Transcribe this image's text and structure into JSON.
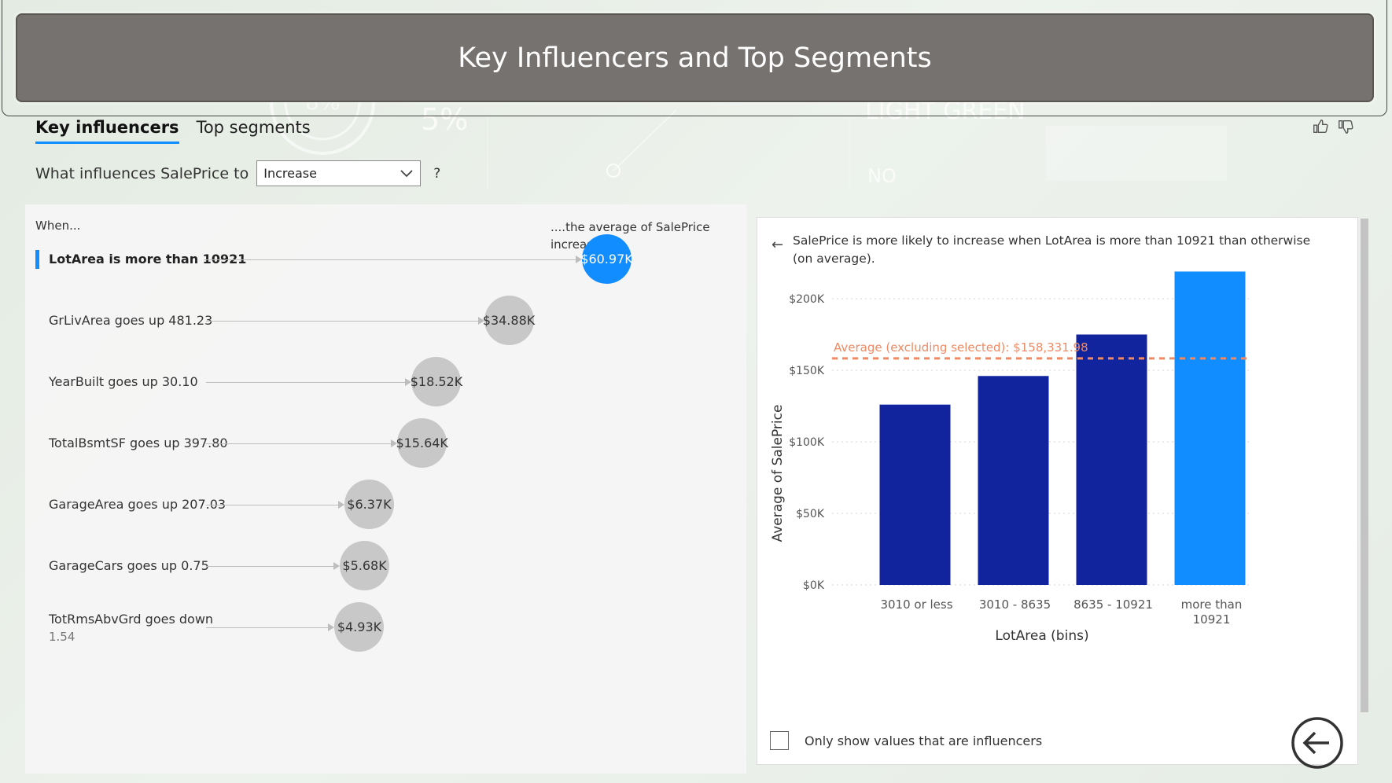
{
  "header": {
    "title": "Key Influencers and Top Segments"
  },
  "background": {
    "deco_text_1": "5%",
    "deco_text_2": "LIGHT GREEN",
    "deco_text_3": "NO",
    "deco_text_4": "5%",
    "deco_text_5": "8%"
  },
  "tabs": [
    {
      "label": "Key influencers",
      "active": true
    },
    {
      "label": "Top segments",
      "active": false
    }
  ],
  "question": {
    "prefix": "What influences SalePrice to",
    "selected": "Increase",
    "suffix": "?"
  },
  "influencers": {
    "col_when": "When...",
    "col_increase_line1": "....the average of SalePrice",
    "col_increase_line2": "increases by",
    "items": [
      {
        "label": "LotArea is more than 10921",
        "sub": "",
        "value": "$60.97K",
        "amount": 60.97,
        "selected": true
      },
      {
        "label": "GrLivArea goes up 481.23",
        "sub": "",
        "value": "$34.88K",
        "amount": 34.88,
        "selected": false
      },
      {
        "label": "YearBuilt goes up 30.10",
        "sub": "",
        "value": "$18.52K",
        "amount": 18.52,
        "selected": false
      },
      {
        "label": "TotalBsmtSF goes up 397.80",
        "sub": "",
        "value": "$15.64K",
        "amount": 15.64,
        "selected": false
      },
      {
        "label": "GarageArea goes up 207.03",
        "sub": "",
        "value": "$6.37K",
        "amount": 6.37,
        "selected": false
      },
      {
        "label": "GarageCars goes up 0.75",
        "sub": "",
        "value": "$5.68K",
        "amount": 5.68,
        "selected": false
      },
      {
        "label": "TotRmsAbvGrd goes down",
        "sub": "1.54",
        "value": "$4.93K",
        "amount": 4.93,
        "selected": false
      }
    ]
  },
  "detail": {
    "explanation": "SalePrice is more likely to increase when LotArea is more than 10921 than otherwise (on average).",
    "checkbox_label": "Only show values that are influencers"
  },
  "chart_data": {
    "type": "bar",
    "categories": [
      "3010 or less",
      "3010 - 8635",
      "8635 - 10921",
      "more than 10921"
    ],
    "values": [
      126000,
      146000,
      175000,
      219000
    ],
    "highlighted_index": 3,
    "xlabel": "LotArea (bins)",
    "ylabel": "Average of SalePrice",
    "ylim": [
      0,
      200000
    ],
    "yticks": [
      "$0K",
      "$50K",
      "$100K",
      "$150K",
      "$200K"
    ],
    "ytick_values": [
      0,
      50000,
      100000,
      150000,
      200000
    ],
    "reference_line": {
      "label": "Average (excluding selected): $158,331.98",
      "value": 158331.98
    },
    "colors": {
      "bar": "#12239e",
      "highlight": "#118dff",
      "reference": "#f08a64",
      "grid": "#d6d6d6"
    }
  }
}
